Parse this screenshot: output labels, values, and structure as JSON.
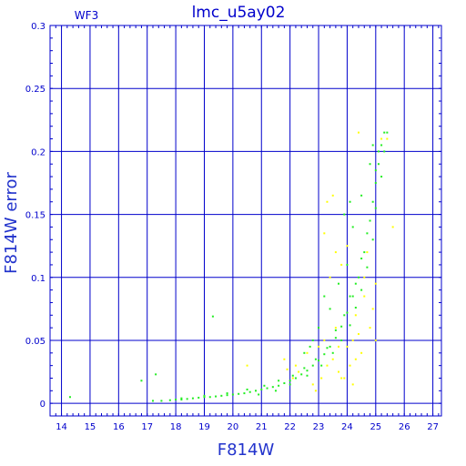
{
  "chart_data": {
    "type": "scatter",
    "title": "lmc_u5ay02",
    "subtitle": "WF3",
    "xlabel": "F814W",
    "ylabel": "F814W error",
    "xlim": [
      13.6,
      27.3
    ],
    "ylim": [
      -0.01,
      0.3
    ],
    "x_ticks": [
      14,
      15,
      16,
      17,
      18,
      19,
      20,
      21,
      22,
      23,
      24,
      25,
      26,
      27
    ],
    "y_ticks": [
      0,
      0.05,
      0.1,
      0.15,
      0.2,
      0.25,
      0.3
    ],
    "y_tick_labels": [
      "0",
      "0.05",
      "0.1",
      "0.15",
      "0.2",
      "0.25",
      "0.3"
    ],
    "grid": true,
    "colors": {
      "axis": "#0000cc",
      "grid": "#0000cc",
      "series_main": "#22ee22",
      "series_secondary": "#ffff00"
    },
    "series": [
      {
        "color": "#22ee22",
        "points": [
          [
            14.3,
            0.005
          ],
          [
            16.8,
            0.018
          ],
          [
            17.3,
            0.023
          ],
          [
            19.3,
            0.069
          ],
          [
            17.2,
            0.002
          ],
          [
            17.5,
            0.002
          ],
          [
            17.8,
            0.0025
          ],
          [
            18.0,
            0.003
          ],
          [
            18.2,
            0.003
          ],
          [
            18.4,
            0.0035
          ],
          [
            18.6,
            0.004
          ],
          [
            18.8,
            0.0045
          ],
          [
            19.0,
            0.005
          ],
          [
            19.2,
            0.005
          ],
          [
            19.4,
            0.0055
          ],
          [
            19.6,
            0.006
          ],
          [
            19.8,
            0.0065
          ],
          [
            20.0,
            0.007
          ],
          [
            20.2,
            0.0075
          ],
          [
            20.4,
            0.008
          ],
          [
            20.6,
            0.009
          ],
          [
            20.8,
            0.01
          ],
          [
            21.0,
            0.011
          ],
          [
            21.2,
            0.012
          ],
          [
            21.4,
            0.013
          ],
          [
            21.6,
            0.014
          ],
          [
            21.8,
            0.016
          ],
          [
            22.0,
            0.018
          ],
          [
            22.2,
            0.02
          ],
          [
            22.4,
            0.023
          ],
          [
            22.6,
            0.026
          ],
          [
            22.8,
            0.03
          ],
          [
            23.0,
            0.034
          ],
          [
            23.2,
            0.039
          ],
          [
            23.4,
            0.045
          ],
          [
            23.6,
            0.052
          ],
          [
            23.8,
            0.061
          ],
          [
            24.0,
            0.072
          ],
          [
            24.2,
            0.085
          ],
          [
            24.4,
            0.1
          ],
          [
            24.6,
            0.12
          ],
          [
            24.8,
            0.145
          ],
          [
            25.0,
            0.175
          ],
          [
            25.1,
            0.19
          ],
          [
            25.2,
            0.205
          ],
          [
            25.3,
            0.215
          ],
          [
            18.2,
            0.004
          ],
          [
            19.0,
            0.006
          ],
          [
            19.8,
            0.008
          ],
          [
            20.5,
            0.011
          ],
          [
            21.1,
            0.014
          ],
          [
            21.6,
            0.018
          ],
          [
            22.1,
            0.022
          ],
          [
            22.5,
            0.028
          ],
          [
            22.9,
            0.035
          ],
          [
            23.3,
            0.044
          ],
          [
            23.6,
            0.058
          ],
          [
            23.9,
            0.07
          ],
          [
            24.1,
            0.085
          ],
          [
            24.3,
            0.095
          ],
          [
            24.5,
            0.115
          ],
          [
            24.7,
            0.135
          ],
          [
            24.9,
            0.16
          ],
          [
            25.0,
            0.185
          ],
          [
            25.1,
            0.2
          ],
          [
            20.9,
            0.007
          ],
          [
            21.5,
            0.01
          ],
          [
            22.0,
            0.015
          ],
          [
            22.6,
            0.022
          ],
          [
            23.1,
            0.03
          ],
          [
            23.5,
            0.04
          ],
          [
            23.8,
            0.05
          ],
          [
            24.1,
            0.062
          ],
          [
            24.3,
            0.076
          ],
          [
            24.5,
            0.09
          ],
          [
            24.7,
            0.108
          ],
          [
            24.9,
            0.13
          ],
          [
            25.0,
            0.155
          ],
          [
            25.2,
            0.18
          ],
          [
            25.3,
            0.2
          ],
          [
            22.8,
            0.05
          ],
          [
            23.0,
            0.06
          ],
          [
            23.4,
            0.075
          ],
          [
            23.7,
            0.095
          ],
          [
            24.0,
            0.11
          ],
          [
            24.2,
            0.14
          ],
          [
            24.5,
            0.165
          ],
          [
            24.8,
            0.19
          ],
          [
            24.9,
            0.205
          ],
          [
            25.4,
            0.215
          ],
          [
            22.5,
            0.04
          ],
          [
            22.7,
            0.045
          ],
          [
            23.9,
            0.15
          ],
          [
            24.1,
            0.16
          ],
          [
            23.2,
            0.085
          ]
        ]
      },
      {
        "color": "#ffff00",
        "points": [
          [
            20.5,
            0.03
          ],
          [
            21.8,
            0.035
          ],
          [
            22.3,
            0.025
          ],
          [
            22.8,
            0.015
          ],
          [
            22.9,
            0.01
          ],
          [
            23.1,
            0.02
          ],
          [
            23.3,
            0.03
          ],
          [
            23.5,
            0.035
          ],
          [
            23.7,
            0.025
          ],
          [
            23.9,
            0.02
          ],
          [
            24.1,
            0.03
          ],
          [
            24.3,
            0.035
          ],
          [
            24.5,
            0.04
          ],
          [
            24.2,
            0.05
          ],
          [
            24.0,
            0.045
          ],
          [
            23.6,
            0.06
          ],
          [
            23.0,
            0.045
          ],
          [
            23.2,
            0.05
          ],
          [
            22.6,
            0.04
          ],
          [
            22.2,
            0.03
          ],
          [
            23.4,
            0.1
          ],
          [
            23.2,
            0.135
          ],
          [
            23.6,
            0.12
          ],
          [
            23.8,
            0.11
          ],
          [
            24.0,
            0.125
          ],
          [
            24.3,
            0.07
          ],
          [
            24.6,
            0.085
          ],
          [
            24.8,
            0.06
          ],
          [
            24.9,
            0.075
          ],
          [
            25.0,
            0.05
          ],
          [
            24.4,
            0.215
          ],
          [
            25.4,
            0.21
          ],
          [
            25.2,
            0.21
          ],
          [
            23.5,
            0.165
          ],
          [
            23.3,
            0.16
          ],
          [
            24.6,
            0.1
          ],
          [
            24.7,
            0.12
          ],
          [
            25.6,
            0.14
          ],
          [
            24.2,
            0.015
          ],
          [
            23.8,
            0.02
          ],
          [
            22.1,
            0.02
          ],
          [
            21.9,
            0.027
          ],
          [
            23.7,
            0.045
          ],
          [
            24.4,
            0.055
          ],
          [
            25.0,
            0.095
          ]
        ]
      }
    ]
  }
}
